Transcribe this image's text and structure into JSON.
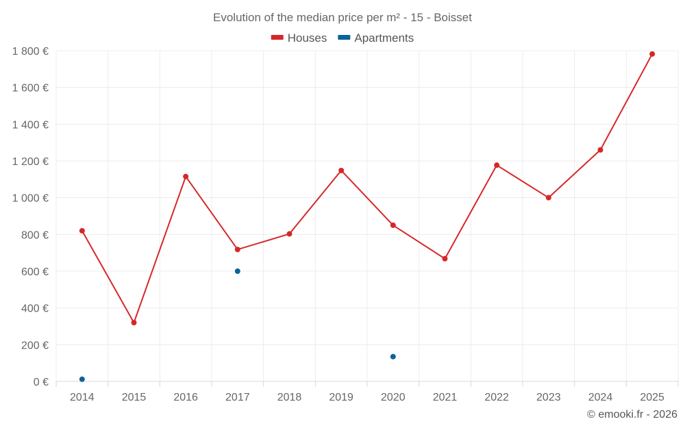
{
  "chart_data": {
    "type": "line",
    "title": "Evolution of the median price per m² - 15 - Boisset",
    "categories": [
      "2014",
      "2015",
      "2016",
      "2017",
      "2018",
      "2019",
      "2020",
      "2021",
      "2022",
      "2023",
      "2024",
      "2025"
    ],
    "series": [
      {
        "name": "Houses",
        "color": "#d62728",
        "values": [
          820,
          320,
          1115,
          718,
          803,
          1148,
          850,
          668,
          1177,
          1000,
          1260,
          1782
        ],
        "connected": true
      },
      {
        "name": "Apartments",
        "color": "#0d6399",
        "values": [
          12,
          null,
          null,
          600,
          null,
          null,
          135,
          null,
          null,
          null,
          null,
          null
        ],
        "connected": false
      }
    ],
    "yticks": [
      0,
      200,
      400,
      600,
      800,
      1000,
      1200,
      1400,
      1600,
      1800
    ],
    "ytick_labels": [
      "0 €",
      "200 €",
      "400 €",
      "600 €",
      "800 €",
      "1 000 €",
      "1 200 €",
      "1 400 €",
      "1 600 €",
      "1 800 €"
    ],
    "ylim": [
      0,
      1800
    ],
    "xlabel": "",
    "ylabel": "",
    "grid": true,
    "legend_position": "top-center",
    "credit": "© emooki.fr - 2026"
  }
}
